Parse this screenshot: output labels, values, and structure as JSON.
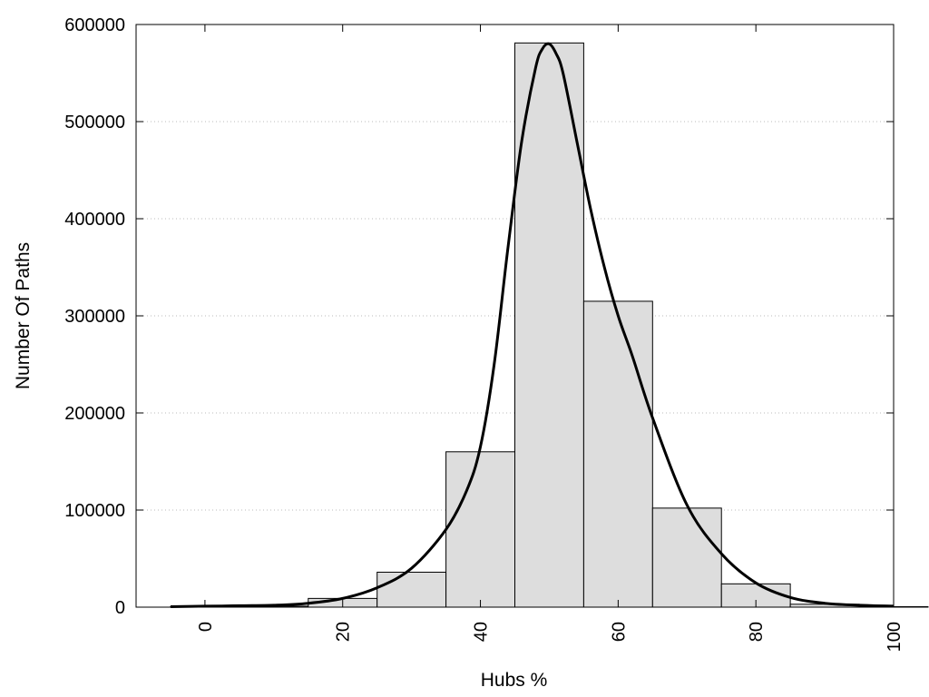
{
  "chart_data": {
    "type": "bar",
    "xlabel": "Hubs %",
    "ylabel": "Number Of Paths",
    "xlim": [
      -10,
      100
    ],
    "ylim": [
      0,
      600000
    ],
    "x_ticks": [
      "0",
      "20",
      "40",
      "60",
      "80",
      "100"
    ],
    "y_ticks": [
      "0",
      "100000",
      "200000",
      "300000",
      "400000",
      "500000",
      "600000"
    ],
    "grid": "horizontal dotted",
    "bar_color": "#dddddd",
    "edge_color": "#000000",
    "bins": [
      {
        "x": 0,
        "value": 500
      },
      {
        "x": 10,
        "value": 1000
      },
      {
        "x": 20,
        "value": 9000
      },
      {
        "x": 30,
        "value": 36000
      },
      {
        "x": 40,
        "value": 160000
      },
      {
        "x": 50,
        "value": 581000
      },
      {
        "x": 60,
        "value": 315000
      },
      {
        "x": 70,
        "value": 102000
      },
      {
        "x": 80,
        "value": 24000
      },
      {
        "x": 90,
        "value": 3000
      },
      {
        "x": 100,
        "value": 500
      }
    ],
    "bin_width": 10,
    "curve": {
      "x": [
        -5,
        0,
        5,
        10,
        15,
        20,
        25,
        30,
        35,
        38,
        40,
        42,
        44,
        46,
        48,
        49,
        50,
        51,
        52,
        54,
        56,
        58,
        60,
        62,
        65,
        70,
        75,
        80,
        85,
        90,
        95,
        100
      ],
      "y": [
        500,
        1000,
        1500,
        2000,
        4000,
        9000,
        20000,
        40000,
        80000,
        120000,
        165000,
        250000,
        370000,
        480000,
        555000,
        575000,
        580000,
        570000,
        550000,
        480000,
        410000,
        350000,
        300000,
        260000,
        195000,
        105000,
        55000,
        25000,
        10000,
        4000,
        2000,
        1000
      ]
    }
  }
}
